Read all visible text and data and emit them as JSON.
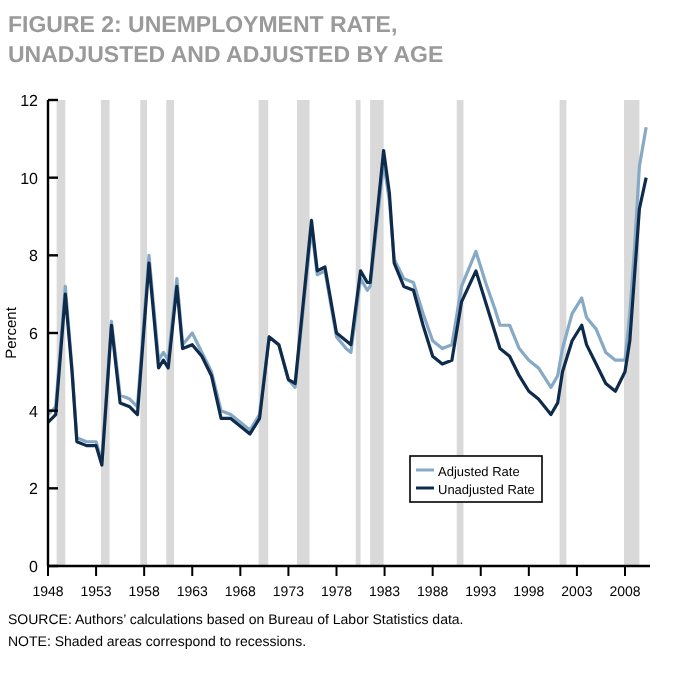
{
  "chart_data": {
    "type": "line",
    "title": "FIGURE 2: UNEMPLOYMENT RATE,",
    "subtitle": "UNADJUSTED AND ADJUSTED BY AGE",
    "ylabel": "Percent",
    "annotations": [
      "SOURCE: Authors’ calculations based on Bureau of Labor Statistics data.",
      "NOTE: Shaded areas correspond to recessions."
    ],
    "x": [
      1948,
      1948.8,
      1949.8,
      1950.5,
      1951,
      1952,
      1953,
      1953.6,
      1954.6,
      1955.5,
      1956.5,
      1957.3,
      1958.5,
      1959.5,
      1960,
      1960.5,
      1961.4,
      1962,
      1963,
      1964,
      1965,
      1966,
      1967,
      1968,
      1969,
      1970,
      1971,
      1972,
      1973,
      1973.7,
      1975.4,
      1976,
      1976.8,
      1978,
      1979,
      1979.5,
      1980.5,
      1981.2,
      1981.5,
      1982.9,
      1983.5,
      1984,
      1985,
      1986,
      1987,
      1988,
      1989,
      1990,
      1991,
      1992.5,
      1993.5,
      1994.5,
      1995,
      1996,
      1997,
      1998,
      1999,
      2000.3,
      2001,
      2001.5,
      2002.5,
      2003.5,
      2004,
      2005,
      2006,
      2007,
      2008,
      2008.5,
      2009,
      2009.5,
      2010.2
    ],
    "series": [
      {
        "name": "Adjusted Rate",
        "color": "#86a9c6",
        "values": [
          3.9,
          4.1,
          7.2,
          5.1,
          3.3,
          3.2,
          3.2,
          2.7,
          6.3,
          4.4,
          4.3,
          4.1,
          8.0,
          5.3,
          5.5,
          5.3,
          7.4,
          5.7,
          6.0,
          5.5,
          5.0,
          4.0,
          3.9,
          3.7,
          3.5,
          3.9,
          5.9,
          5.7,
          4.8,
          4.6,
          8.7,
          7.5,
          7.6,
          5.9,
          5.6,
          5.5,
          7.4,
          7.1,
          7.2,
          10.4,
          9.4,
          7.9,
          7.4,
          7.3,
          6.5,
          5.8,
          5.6,
          5.7,
          7.2,
          8.1,
          7.3,
          6.6,
          6.2,
          6.2,
          5.6,
          5.3,
          5.1,
          4.6,
          4.9,
          5.6,
          6.5,
          6.9,
          6.4,
          6.1,
          5.5,
          5.3,
          5.3,
          6.5,
          8.2,
          10.3,
          11.3
        ]
      },
      {
        "name": "Unadjusted Rate",
        "color": "#0f2b4c",
        "values": [
          3.7,
          3.9,
          7.0,
          5.0,
          3.2,
          3.1,
          3.1,
          2.6,
          6.2,
          4.2,
          4.1,
          3.9,
          7.8,
          5.1,
          5.3,
          5.1,
          7.2,
          5.6,
          5.7,
          5.4,
          4.9,
          3.8,
          3.8,
          3.6,
          3.4,
          3.8,
          5.9,
          5.7,
          4.8,
          4.7,
          8.9,
          7.6,
          7.7,
          6.0,
          5.8,
          5.7,
          7.6,
          7.3,
          7.3,
          10.7,
          9.6,
          7.8,
          7.2,
          7.1,
          6.2,
          5.4,
          5.2,
          5.3,
          6.8,
          7.6,
          6.8,
          6.0,
          5.6,
          5.4,
          4.9,
          4.5,
          4.3,
          3.9,
          4.2,
          5.0,
          5.8,
          6.2,
          5.7,
          5.2,
          4.7,
          4.5,
          5.0,
          5.8,
          7.5,
          9.2,
          10.0
        ]
      }
    ],
    "xlim": [
      1948,
      2010.6
    ],
    "ylim": [
      0,
      12
    ],
    "xticks": [
      1948,
      1953,
      1958,
      1963,
      1968,
      1973,
      1978,
      1983,
      1988,
      1993,
      1998,
      2003,
      2008
    ],
    "yticks": [
      0,
      2,
      4,
      6,
      8,
      10,
      12
    ],
    "bands": [
      {
        "axis": "x",
        "from": 1948.9,
        "to": 1949.8,
        "color": "#d9d9d9"
      },
      {
        "axis": "x",
        "from": 1953.5,
        "to": 1954.4,
        "color": "#d9d9d9"
      },
      {
        "axis": "x",
        "from": 1957.6,
        "to": 1958.3,
        "color": "#d9d9d9"
      },
      {
        "axis": "x",
        "from": 1960.3,
        "to": 1961.1,
        "color": "#d9d9d9"
      },
      {
        "axis": "x",
        "from": 1969.9,
        "to": 1970.9,
        "color": "#d9d9d9"
      },
      {
        "axis": "x",
        "from": 1973.9,
        "to": 1975.2,
        "color": "#d9d9d9"
      },
      {
        "axis": "x",
        "from": 1980,
        "to": 1980.5,
        "color": "#d9d9d9"
      },
      {
        "axis": "x",
        "from": 1981.5,
        "to": 1982.9,
        "color": "#d9d9d9"
      },
      {
        "axis": "x",
        "from": 1990.5,
        "to": 1991.2,
        "color": "#d9d9d9"
      },
      {
        "axis": "x",
        "from": 2001.2,
        "to": 2001.9,
        "color": "#d9d9d9"
      },
      {
        "axis": "x",
        "from": 2007.9,
        "to": 2009.5,
        "color": "#d9d9d9"
      }
    ],
    "legend": "bottom right",
    "grid": false,
    "line_style": "solid",
    "marker": "none"
  }
}
